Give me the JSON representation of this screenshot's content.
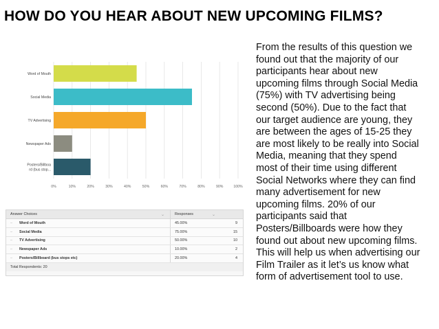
{
  "title": "HOW DO YOU HEAR ABOUT NEW UPCOMING FILMS?",
  "chart_data": {
    "type": "bar",
    "orientation": "horizontal",
    "categories": [
      "Word of Mouth",
      "Social Media",
      "TV Advertising",
      "Newspaper Ads",
      "Posters/Billboa rd (bus stop..."
    ],
    "values": [
      45,
      75,
      50,
      10,
      20
    ],
    "colors": [
      "#d4dc4a",
      "#3cbcc8",
      "#f5a82a",
      "#8c8c80",
      "#2a5a6a"
    ],
    "xlim": [
      0,
      100
    ],
    "xticks": [
      "0%",
      "10%",
      "20%",
      "30%",
      "40%",
      "50%",
      "60%",
      "70%",
      "80%",
      "90%",
      "100%"
    ],
    "grid": true
  },
  "table": {
    "headers": [
      "Answer Choices",
      "Responses"
    ],
    "rows": [
      {
        "choice": "Word of Mouth",
        "percent": "45.00%",
        "count": "9"
      },
      {
        "choice": "Social Media",
        "percent": "75.00%",
        "count": "15"
      },
      {
        "choice": "TV Advertising",
        "percent": "50.00%",
        "count": "10"
      },
      {
        "choice": "Newspaper Ads",
        "percent": "10.00%",
        "count": "2"
      },
      {
        "choice": "Posters/Billboard (bus stops etc)",
        "percent": "20.00%",
        "count": "4"
      }
    ],
    "total": "Total Respondents: 20"
  },
  "paragraph_lines": [
    "From the results of this question we",
    "found out that the majority of our",
    "participants hear about new",
    "upcoming films through Social Media",
    "(75%) with TV advertising being",
    "second (50%). Due to the fact that",
    "our target audience are young, they",
    "are between the ages of 15-25 they",
    "are most likely to be really into Social",
    "Media, meaning that they spend",
    "most of their time using different",
    "Social Networks where they can find",
    "many advertisement for new",
    "upcoming films. 20% of our",
    "participants said that",
    "Posters/Billboards were how they",
    "found out about new upcoming films.",
    "This will help us when advertising our",
    "Film Trailer as it let’s us know what",
    "form of advertisement tool to use."
  ]
}
